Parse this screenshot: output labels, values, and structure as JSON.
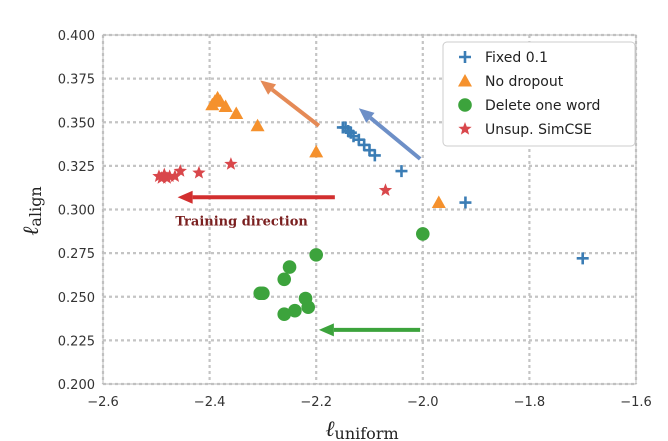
{
  "chart_data": {
    "type": "scatter",
    "xlabel": "ℓ",
    "xlabel_sub": "uniform",
    "ylabel": "ℓ",
    "ylabel_sub": "align",
    "xlim": [
      -2.6,
      -1.6
    ],
    "ylim": [
      0.2,
      0.4
    ],
    "grid": true,
    "legend_position": "top-right",
    "x_ticks": [
      {
        "value": -2.6,
        "label": "−2.6"
      },
      {
        "value": -2.4,
        "label": "−2.4"
      },
      {
        "value": -2.2,
        "label": "−2.2"
      },
      {
        "value": -2.0,
        "label": "−2.0"
      },
      {
        "value": -1.8,
        "label": "−1.8"
      },
      {
        "value": -1.6,
        "label": "−1.6"
      }
    ],
    "y_ticks": [
      {
        "value": 0.2,
        "label": "0.200"
      },
      {
        "value": 0.225,
        "label": "0.225"
      },
      {
        "value": 0.25,
        "label": "0.250"
      },
      {
        "value": 0.275,
        "label": "0.275"
      },
      {
        "value": 0.3,
        "label": "0.300"
      },
      {
        "value": 0.325,
        "label": "0.325"
      },
      {
        "value": 0.35,
        "label": "0.350"
      },
      {
        "value": 0.375,
        "label": "0.375"
      },
      {
        "value": 0.4,
        "label": "0.400"
      }
    ],
    "series": [
      {
        "name": "Fixed 0.1",
        "marker": "plus",
        "color": "#3b7db5",
        "points": [
          [
            -1.7,
            0.272
          ],
          [
            -1.92,
            0.304
          ],
          [
            -2.04,
            0.322
          ],
          [
            -2.09,
            0.331
          ],
          [
            -2.1,
            0.334
          ],
          [
            -2.11,
            0.337
          ],
          [
            -2.12,
            0.34
          ],
          [
            -2.13,
            0.342
          ],
          [
            -2.135,
            0.344
          ],
          [
            -2.14,
            0.345
          ],
          [
            -2.145,
            0.347
          ],
          [
            -2.15,
            0.347
          ]
        ]
      },
      {
        "name": "No dropout",
        "marker": "triangle",
        "color": "#f5912d",
        "points": [
          [
            -1.97,
            0.304
          ],
          [
            -2.2,
            0.333
          ],
          [
            -2.31,
            0.348
          ],
          [
            -2.35,
            0.355
          ],
          [
            -2.37,
            0.359
          ],
          [
            -2.38,
            0.362
          ],
          [
            -2.385,
            0.364
          ],
          [
            -2.39,
            0.362
          ],
          [
            -2.395,
            0.36
          ]
        ]
      },
      {
        "name": "Delete one word",
        "marker": "circle",
        "color": "#3ca33c",
        "points": [
          [
            -2.0,
            0.286
          ],
          [
            -2.2,
            0.274
          ],
          [
            -2.25,
            0.267
          ],
          [
            -2.26,
            0.26
          ],
          [
            -2.3,
            0.252
          ],
          [
            -2.305,
            0.252
          ],
          [
            -2.22,
            0.249
          ],
          [
            -2.215,
            0.244
          ],
          [
            -2.24,
            0.242
          ],
          [
            -2.26,
            0.24
          ]
        ]
      },
      {
        "name": "Unsup. SimCSE",
        "marker": "star",
        "color": "#d9474b",
        "points": [
          [
            -2.07,
            0.311
          ],
          [
            -2.36,
            0.326
          ],
          [
            -2.42,
            0.321
          ],
          [
            -2.455,
            0.322
          ],
          [
            -2.465,
            0.319
          ],
          [
            -2.475,
            0.319
          ],
          [
            -2.48,
            0.318
          ],
          [
            -2.485,
            0.32
          ],
          [
            -2.49,
            0.318
          ],
          [
            -2.495,
            0.319
          ]
        ]
      }
    ],
    "arrows": [
      {
        "name": "blue",
        "color": "#6d8fc7",
        "from": [
          -2.005,
          0.329
        ],
        "to": [
          -2.12,
          0.358
        ]
      },
      {
        "name": "orange",
        "color": "#e58a56",
        "from": [
          -2.195,
          0.348
        ],
        "to": [
          -2.305,
          0.374
        ]
      },
      {
        "name": "red",
        "color": "#d22f2f",
        "from": [
          -2.165,
          0.307
        ],
        "to": [
          -2.46,
          0.307
        ]
      },
      {
        "name": "green",
        "color": "#3ca33c",
        "from": [
          -2.005,
          0.231
        ],
        "to": [
          -2.195,
          0.231
        ]
      }
    ],
    "annotations": [
      {
        "text": "Training direction",
        "x": -2.34,
        "y": 0.293
      }
    ]
  }
}
